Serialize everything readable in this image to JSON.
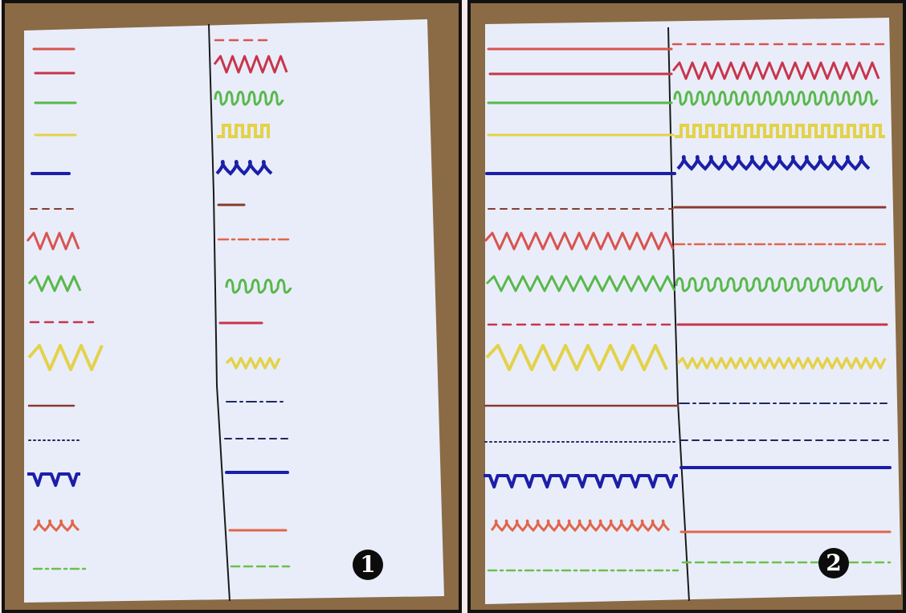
{
  "panels": [
    {
      "id": "1",
      "label": "1"
    },
    {
      "id": "2",
      "label": "2"
    }
  ],
  "colors": {
    "wood": "#8a6b45",
    "paper": "#e9edf9",
    "frame": "#111111",
    "fold_line": "#1a1a1a",
    "red": "#d9534f",
    "crimson": "#c8354a",
    "green": "#58b84a",
    "yellow": "#e3d24a",
    "blue": "#1b1fa8",
    "orange": "#e0664a",
    "brown": "#8a3b2f",
    "navy": "#1e2860",
    "lime": "#6cc04a"
  }
}
